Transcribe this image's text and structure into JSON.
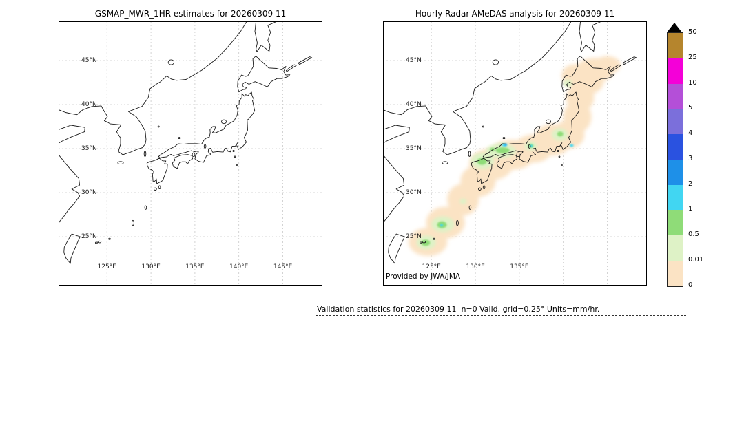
{
  "left_panel": {
    "title": "GSMAP_MWR_1HR estimates for 20260309 11",
    "lat_labels": [
      "45°N",
      "40°N",
      "35°N",
      "30°N",
      "25°N"
    ],
    "lon_labels": [
      "125°E",
      "130°E",
      "135°E",
      "140°E",
      "145°E"
    ]
  },
  "right_panel": {
    "title": "Hourly Radar-AMeDAS analysis for 20260309 11",
    "lat_labels": [
      "45°N",
      "40°N",
      "35°N",
      "30°N",
      "25°N"
    ],
    "lon_labels": [
      "125°E",
      "130°E",
      "135°E"
    ],
    "attribution": "Provided by JWA/JMA",
    "precipitation": {
      "levels": [
        {
          "range": "0-0.01",
          "color": "#fbe3c4",
          "blobs": [
            [
              124.6,
              24.4,
              2.2,
              1.6
            ],
            [
              126.6,
              26.6,
              2.2,
              1.8
            ],
            [
              128.6,
              29.2,
              1.8,
              1.8
            ],
            [
              130.3,
              31.3,
              2.0,
              1.8
            ],
            [
              131.8,
              33.2,
              2.5,
              1.8
            ],
            [
              134.2,
              34.3,
              2.6,
              1.7
            ],
            [
              136.6,
              35.0,
              2.2,
              1.6
            ],
            [
              138.8,
              36.0,
              2.2,
              1.8
            ],
            [
              140.6,
              36.6,
              1.8,
              1.6
            ],
            [
              141.6,
              38.6,
              1.6,
              1.8
            ],
            [
              141.9,
              40.8,
              1.6,
              1.6
            ],
            [
              142.6,
              42.6,
              2.0,
              1.5
            ],
            [
              143.6,
              43.9,
              2.2,
              1.4
            ],
            [
              141.4,
              43.3,
              1.6,
              1.3
            ],
            [
              145.0,
              44.5,
              1.5,
              1.0
            ]
          ]
        },
        {
          "range": "0.01-0.5",
          "color": "#def2c6",
          "blobs": [
            [
              124.4,
              24.35,
              1.1,
              0.8
            ],
            [
              126.3,
              26.4,
              1.3,
              0.9
            ],
            [
              128.6,
              29.0,
              0.4,
              0.3
            ],
            [
              130.8,
              33.6,
              1.3,
              0.9
            ],
            [
              132.9,
              34.75,
              1.7,
              0.8
            ],
            [
              132.9,
              35.35,
              0.6,
              0.3
            ],
            [
              136.3,
              35.3,
              0.7,
              0.5
            ],
            [
              139.6,
              36.6,
              0.9,
              0.7
            ],
            [
              140.5,
              42.4,
              0.5,
              0.4
            ]
          ]
        },
        {
          "range": "0.5-1",
          "color": "#8fdc78",
          "blobs": [
            [
              124.35,
              24.3,
              0.5,
              0.35
            ],
            [
              126.2,
              26.35,
              0.55,
              0.4
            ],
            [
              130.75,
              33.55,
              0.55,
              0.4
            ],
            [
              133.1,
              34.8,
              0.8,
              0.35
            ],
            [
              131.95,
              34.9,
              0.3,
              0.2
            ],
            [
              136.3,
              35.3,
              0.3,
              0.22
            ],
            [
              139.65,
              36.65,
              0.35,
              0.28
            ]
          ]
        },
        {
          "range": "1-2",
          "color": "#41d6f2",
          "blobs": [
            [
              133.3,
              35.4,
              0.3,
              0.18
            ],
            [
              136.35,
              35.3,
              0.16,
              0.13
            ],
            [
              140.95,
              35.35,
              0.22,
              0.16
            ],
            [
              126.15,
              26.3,
              0.18,
              0.13
            ]
          ]
        },
        {
          "range": "2-3",
          "color": "#1e90e8",
          "blobs": [
            [
              133.45,
              35.45,
              0.13,
              0.09
            ]
          ]
        }
      ]
    }
  },
  "colorbar": {
    "tick_labels": [
      "50",
      "25",
      "10",
      "5",
      "4",
      "3",
      "2",
      "1",
      "0.5",
      "0.01",
      "0"
    ],
    "segments_top_to_bottom": [
      "#b5852d",
      "#f400d8",
      "#b44fd8",
      "#7b6fdb",
      "#2a52e0",
      "#1e90e8",
      "#41d6f2",
      "#8fdc78",
      "#def2c6",
      "#fbe3c4"
    ],
    "overflow_arrow_color": "#000000"
  },
  "footer": {
    "stats_text": "Validation statistics for 20260309 11  n=0 Valid. grid=0.25° Units=mm/hr."
  }
}
